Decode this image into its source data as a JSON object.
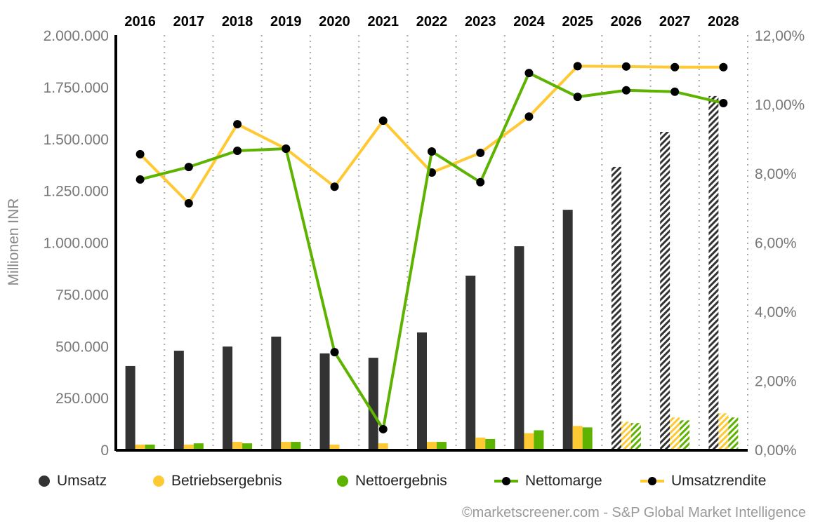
{
  "chart_data": {
    "type": "bar+line",
    "categories": [
      "2016",
      "2017",
      "2018",
      "2019",
      "2020",
      "2021",
      "2022",
      "2023",
      "2024",
      "2025",
      "2026",
      "2027",
      "2028"
    ],
    "forecast_from": "2026",
    "ylabel": "Millionen INR",
    "ylim": [
      0,
      2000000
    ],
    "y2lim": [
      0,
      12
    ],
    "yticks": [
      "0",
      "250.000",
      "500.000",
      "750.000",
      "1.000.000",
      "1.250.000",
      "1.500.000",
      "1.750.000",
      "2.000.000"
    ],
    "y2ticks": [
      "0,00%",
      "2,00%",
      "4,00%",
      "6,00%",
      "8,00%",
      "10,00%",
      "12,00%"
    ],
    "series": [
      {
        "name": "Umsatz",
        "kind": "bar",
        "color": "#333333",
        "values": [
          403000,
          477000,
          497000,
          545000,
          464000,
          443000,
          565000,
          839000,
          981000,
          1157000,
          1364000,
          1533000,
          1706000
        ]
      },
      {
        "name": "Betriebsergebnis",
        "kind": "bar",
        "color": "#ffc933",
        "values": [
          24000,
          24000,
          37000,
          37000,
          24000,
          30000,
          37000,
          58000,
          79000,
          114000,
          134000,
          155000,
          175000
        ]
      },
      {
        "name": "Nettoergebnis",
        "kind": "bar",
        "color": "#5db300",
        "values": [
          24000,
          30000,
          30000,
          37000,
          0,
          0,
          37000,
          51000,
          93000,
          107000,
          128000,
          141000,
          155000
        ]
      },
      {
        "name": "Nettomarge",
        "kind": "line",
        "axis": "right",
        "color": "#5db300",
        "values": [
          7.82,
          8.18,
          8.65,
          8.71,
          2.82,
          0.59,
          8.63,
          7.74,
          10.9,
          10.21,
          10.4,
          10.36,
          10.03
        ]
      },
      {
        "name": "Umsatzrendite",
        "kind": "line",
        "axis": "right",
        "color": "#ffc933",
        "values": [
          8.55,
          7.13,
          9.42,
          8.71,
          7.61,
          9.52,
          8.02,
          8.59,
          9.64,
          11.1,
          11.09,
          11.07,
          11.07
        ]
      }
    ],
    "legend_position": "bottom"
  },
  "footer": "©marketscreener.com - S&P Global Market Intelligence"
}
